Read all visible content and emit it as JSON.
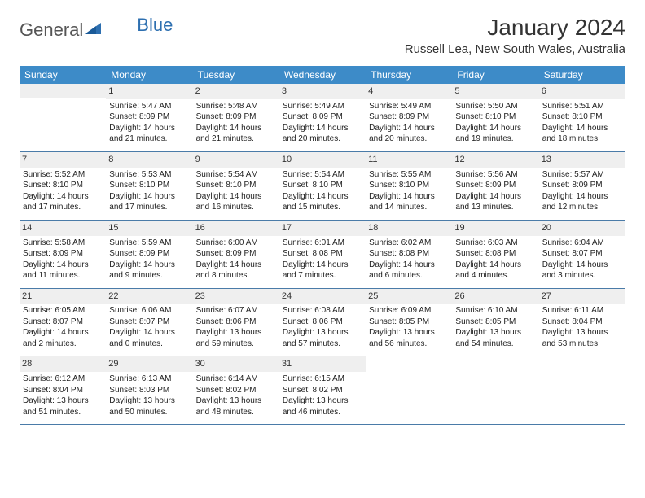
{
  "logo": {
    "word1": "General",
    "word2": "Blue"
  },
  "colors": {
    "header_bg": "#3d8bc8",
    "header_text": "#ffffff",
    "daynum_bg": "#efefef",
    "row_divider": "#4a7ba8",
    "logo_gray": "#555555",
    "logo_blue": "#2d6fb0"
  },
  "title": "January 2024",
  "location": "Russell Lea, New South Wales, Australia",
  "weekdays": [
    "Sunday",
    "Monday",
    "Tuesday",
    "Wednesday",
    "Thursday",
    "Friday",
    "Saturday"
  ],
  "start_offset": 1,
  "days": [
    {
      "n": 1,
      "sr": "5:47 AM",
      "ss": "8:09 PM",
      "dl": "14 hours and 21 minutes."
    },
    {
      "n": 2,
      "sr": "5:48 AM",
      "ss": "8:09 PM",
      "dl": "14 hours and 21 minutes."
    },
    {
      "n": 3,
      "sr": "5:49 AM",
      "ss": "8:09 PM",
      "dl": "14 hours and 20 minutes."
    },
    {
      "n": 4,
      "sr": "5:49 AM",
      "ss": "8:09 PM",
      "dl": "14 hours and 20 minutes."
    },
    {
      "n": 5,
      "sr": "5:50 AM",
      "ss": "8:10 PM",
      "dl": "14 hours and 19 minutes."
    },
    {
      "n": 6,
      "sr": "5:51 AM",
      "ss": "8:10 PM",
      "dl": "14 hours and 18 minutes."
    },
    {
      "n": 7,
      "sr": "5:52 AM",
      "ss": "8:10 PM",
      "dl": "14 hours and 17 minutes."
    },
    {
      "n": 8,
      "sr": "5:53 AM",
      "ss": "8:10 PM",
      "dl": "14 hours and 17 minutes."
    },
    {
      "n": 9,
      "sr": "5:54 AM",
      "ss": "8:10 PM",
      "dl": "14 hours and 16 minutes."
    },
    {
      "n": 10,
      "sr": "5:54 AM",
      "ss": "8:10 PM",
      "dl": "14 hours and 15 minutes."
    },
    {
      "n": 11,
      "sr": "5:55 AM",
      "ss": "8:10 PM",
      "dl": "14 hours and 14 minutes."
    },
    {
      "n": 12,
      "sr": "5:56 AM",
      "ss": "8:09 PM",
      "dl": "14 hours and 13 minutes."
    },
    {
      "n": 13,
      "sr": "5:57 AM",
      "ss": "8:09 PM",
      "dl": "14 hours and 12 minutes."
    },
    {
      "n": 14,
      "sr": "5:58 AM",
      "ss": "8:09 PM",
      "dl": "14 hours and 11 minutes."
    },
    {
      "n": 15,
      "sr": "5:59 AM",
      "ss": "8:09 PM",
      "dl": "14 hours and 9 minutes."
    },
    {
      "n": 16,
      "sr": "6:00 AM",
      "ss": "8:09 PM",
      "dl": "14 hours and 8 minutes."
    },
    {
      "n": 17,
      "sr": "6:01 AM",
      "ss": "8:08 PM",
      "dl": "14 hours and 7 minutes."
    },
    {
      "n": 18,
      "sr": "6:02 AM",
      "ss": "8:08 PM",
      "dl": "14 hours and 6 minutes."
    },
    {
      "n": 19,
      "sr": "6:03 AM",
      "ss": "8:08 PM",
      "dl": "14 hours and 4 minutes."
    },
    {
      "n": 20,
      "sr": "6:04 AM",
      "ss": "8:07 PM",
      "dl": "14 hours and 3 minutes."
    },
    {
      "n": 21,
      "sr": "6:05 AM",
      "ss": "8:07 PM",
      "dl": "14 hours and 2 minutes."
    },
    {
      "n": 22,
      "sr": "6:06 AM",
      "ss": "8:07 PM",
      "dl": "14 hours and 0 minutes."
    },
    {
      "n": 23,
      "sr": "6:07 AM",
      "ss": "8:06 PM",
      "dl": "13 hours and 59 minutes."
    },
    {
      "n": 24,
      "sr": "6:08 AM",
      "ss": "8:06 PM",
      "dl": "13 hours and 57 minutes."
    },
    {
      "n": 25,
      "sr": "6:09 AM",
      "ss": "8:05 PM",
      "dl": "13 hours and 56 minutes."
    },
    {
      "n": 26,
      "sr": "6:10 AM",
      "ss": "8:05 PM",
      "dl": "13 hours and 54 minutes."
    },
    {
      "n": 27,
      "sr": "6:11 AM",
      "ss": "8:04 PM",
      "dl": "13 hours and 53 minutes."
    },
    {
      "n": 28,
      "sr": "6:12 AM",
      "ss": "8:04 PM",
      "dl": "13 hours and 51 minutes."
    },
    {
      "n": 29,
      "sr": "6:13 AM",
      "ss": "8:03 PM",
      "dl": "13 hours and 50 minutes."
    },
    {
      "n": 30,
      "sr": "6:14 AM",
      "ss": "8:02 PM",
      "dl": "13 hours and 48 minutes."
    },
    {
      "n": 31,
      "sr": "6:15 AM",
      "ss": "8:02 PM",
      "dl": "13 hours and 46 minutes."
    }
  ],
  "labels": {
    "sunrise": "Sunrise:",
    "sunset": "Sunset:",
    "daylight": "Daylight:"
  }
}
